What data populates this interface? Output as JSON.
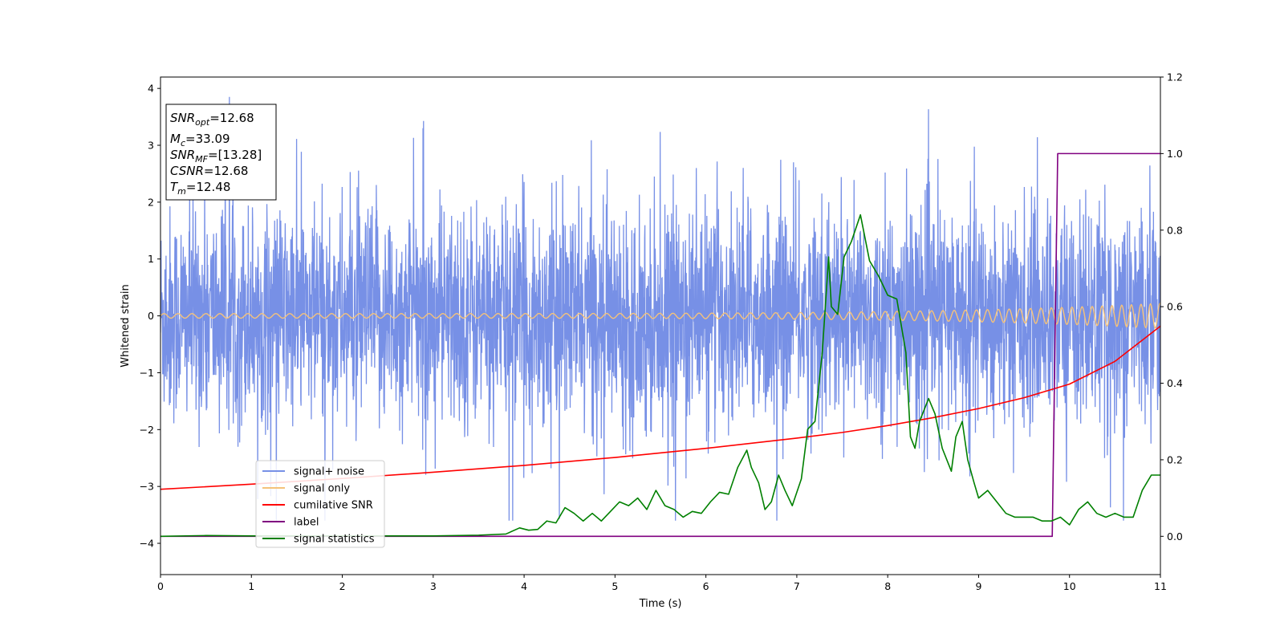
{
  "chart_data": {
    "type": "line",
    "xlabel": "Time (s)",
    "ylabel": "Whitened strain",
    "xlim": [
      0,
      11
    ],
    "ylim_left": [
      -4.55,
      4.2
    ],
    "ylim_right": [
      -0.1,
      1.2
    ],
    "x_ticks": [
      "0",
      "1",
      "2",
      "3",
      "4",
      "5",
      "6",
      "7",
      "8",
      "9",
      "10",
      "11"
    ],
    "y_ticks_left": [
      "4",
      "3",
      "2",
      "1",
      "0",
      "−1",
      "−2",
      "−3",
      "−4"
    ],
    "y_ticks_right": [
      "1.2",
      "1.0",
      "0.8",
      "0.6",
      "0.4",
      "0.2",
      "0.0"
    ],
    "grid": false,
    "legend_position": "lower-left",
    "legend": [
      {
        "label": "signal+ noise",
        "color": "#7790e6"
      },
      {
        "label": "signal only",
        "color": "#f5c27a"
      },
      {
        "label": "cumilative SNR",
        "color": "#ff0000"
      },
      {
        "label": "label",
        "color": "#800080"
      },
      {
        "label": "signal statistics",
        "color": "#008000"
      }
    ],
    "stats_box": {
      "snr_opt": {
        "sym": "SNR",
        "sub": "opt",
        "value": "=12.68"
      },
      "mc": {
        "sym": "M",
        "sub": "c",
        "value": "=33.09"
      },
      "snr_mf": {
        "sym": "SNR",
        "sub": "MF",
        "value": "=[13.28]"
      },
      "csnr": {
        "sym": "CSNR",
        "value": "=12.68"
      },
      "tm": {
        "sym": "T",
        "sub": "m",
        "value": "=12.48"
      }
    },
    "series": [
      {
        "name": "signal+ noise",
        "axis": "left",
        "color": "#7790e6",
        "description_range": [
          -3.6,
          3.85
        ],
        "rendering": "dense noise band, approx ±1.3 typical with spikes to ±3.8"
      },
      {
        "name": "signal only",
        "axis": "left",
        "color": "#f5c27a",
        "amplitude_start": 0.04,
        "amplitude_end": 0.22
      },
      {
        "name": "cumilative SNR",
        "axis": "left",
        "color": "#ff0000",
        "x": [
          0,
          1,
          2,
          3,
          4,
          5,
          6,
          7,
          7.5,
          8,
          8.5,
          9,
          9.5,
          10,
          10.5,
          11
        ],
        "y": [
          -3.05,
          -2.96,
          -2.86,
          -2.75,
          -2.63,
          -2.49,
          -2.33,
          -2.15,
          -2.05,
          -1.93,
          -1.79,
          -1.63,
          -1.44,
          -1.2,
          -0.8,
          -0.18
        ]
      },
      {
        "name": "label",
        "axis": "right",
        "color": "#800080",
        "x": [
          0,
          9.81,
          9.87,
          11
        ],
        "y": [
          0,
          0,
          1,
          1
        ]
      },
      {
        "name": "signal statistics",
        "axis": "right",
        "color": "#008000",
        "x": [
          0,
          0.5,
          1,
          1.5,
          2,
          2.5,
          3,
          3.5,
          3.8,
          3.95,
          4.05,
          4.15,
          4.25,
          4.35,
          4.45,
          4.55,
          4.65,
          4.75,
          4.85,
          4.95,
          5.05,
          5.15,
          5.25,
          5.35,
          5.45,
          5.55,
          5.65,
          5.75,
          5.85,
          5.95,
          6.05,
          6.15,
          6.25,
          6.35,
          6.45,
          6.5,
          6.58,
          6.65,
          6.72,
          6.8,
          6.87,
          6.95,
          7.05,
          7.12,
          7.2,
          7.28,
          7.35,
          7.38,
          7.45,
          7.52,
          7.6,
          7.7,
          7.8,
          7.9,
          8.0,
          8.1,
          8.2,
          8.25,
          8.3,
          8.35,
          8.45,
          8.52,
          8.6,
          8.7,
          8.75,
          8.82,
          8.88,
          8.95,
          9.0,
          9.1,
          9.2,
          9.3,
          9.4,
          9.5,
          9.6,
          9.7,
          9.8,
          9.9,
          10.0,
          10.1,
          10.2,
          10.3,
          10.4,
          10.5,
          10.6,
          10.7,
          10.8,
          10.9,
          11.0
        ],
        "y": [
          0.0,
          0.002,
          0.001,
          0.001,
          0.001,
          0.001,
          0.001,
          0.003,
          0.006,
          0.022,
          0.016,
          0.018,
          0.04,
          0.035,
          0.075,
          0.06,
          0.04,
          0.06,
          0.04,
          0.065,
          0.09,
          0.08,
          0.1,
          0.07,
          0.12,
          0.08,
          0.07,
          0.05,
          0.065,
          0.06,
          0.09,
          0.115,
          0.11,
          0.18,
          0.225,
          0.18,
          0.14,
          0.07,
          0.09,
          0.16,
          0.12,
          0.08,
          0.15,
          0.28,
          0.3,
          0.48,
          0.73,
          0.6,
          0.58,
          0.73,
          0.77,
          0.84,
          0.72,
          0.68,
          0.63,
          0.62,
          0.48,
          0.26,
          0.23,
          0.3,
          0.36,
          0.32,
          0.23,
          0.17,
          0.26,
          0.3,
          0.2,
          0.14,
          0.1,
          0.12,
          0.09,
          0.06,
          0.05,
          0.05,
          0.05,
          0.04,
          0.04,
          0.05,
          0.03,
          0.07,
          0.09,
          0.06,
          0.05,
          0.06,
          0.05,
          0.05,
          0.12,
          0.16,
          0.16
        ]
      }
    ]
  }
}
